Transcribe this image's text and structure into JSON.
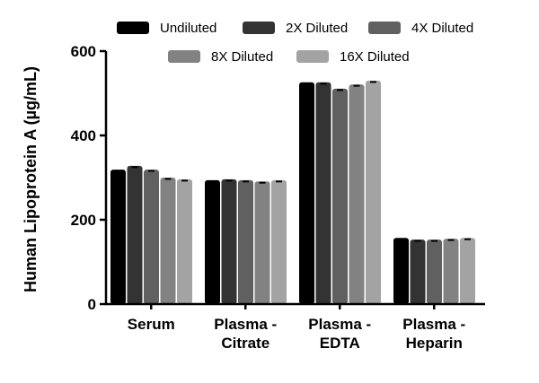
{
  "chart_data": {
    "type": "bar",
    "title": "",
    "xlabel": "",
    "ylabel": "Human Lipoprotein A (µg/mL)",
    "ylim": [
      0,
      600
    ],
    "yticks": [
      0,
      200,
      400,
      600
    ],
    "grid": false,
    "legend_placement": "top",
    "categories": [
      [
        "Serum"
      ],
      [
        "Plasma -",
        "Citrate"
      ],
      [
        "Plasma -",
        "EDTA"
      ],
      [
        "Plasma -",
        "Heparin"
      ]
    ],
    "series": [
      {
        "name": "Undiluted",
        "color": "#000000",
        "values": [
          319,
          294,
          526,
          157
        ]
      },
      {
        "name": "2X Diluted",
        "color": "#333333",
        "values": [
          328,
          296,
          526,
          153
        ]
      },
      {
        "name": "4X Diluted",
        "color": "#606060",
        "values": [
          319,
          294,
          511,
          153
        ]
      },
      {
        "name": "8X Diluted",
        "color": "#828282",
        "values": [
          300,
          291,
          521,
          155
        ]
      },
      {
        "name": "16X Diluted",
        "color": "#a3a3a3",
        "values": [
          296,
          294,
          530,
          157
        ]
      }
    ]
  }
}
